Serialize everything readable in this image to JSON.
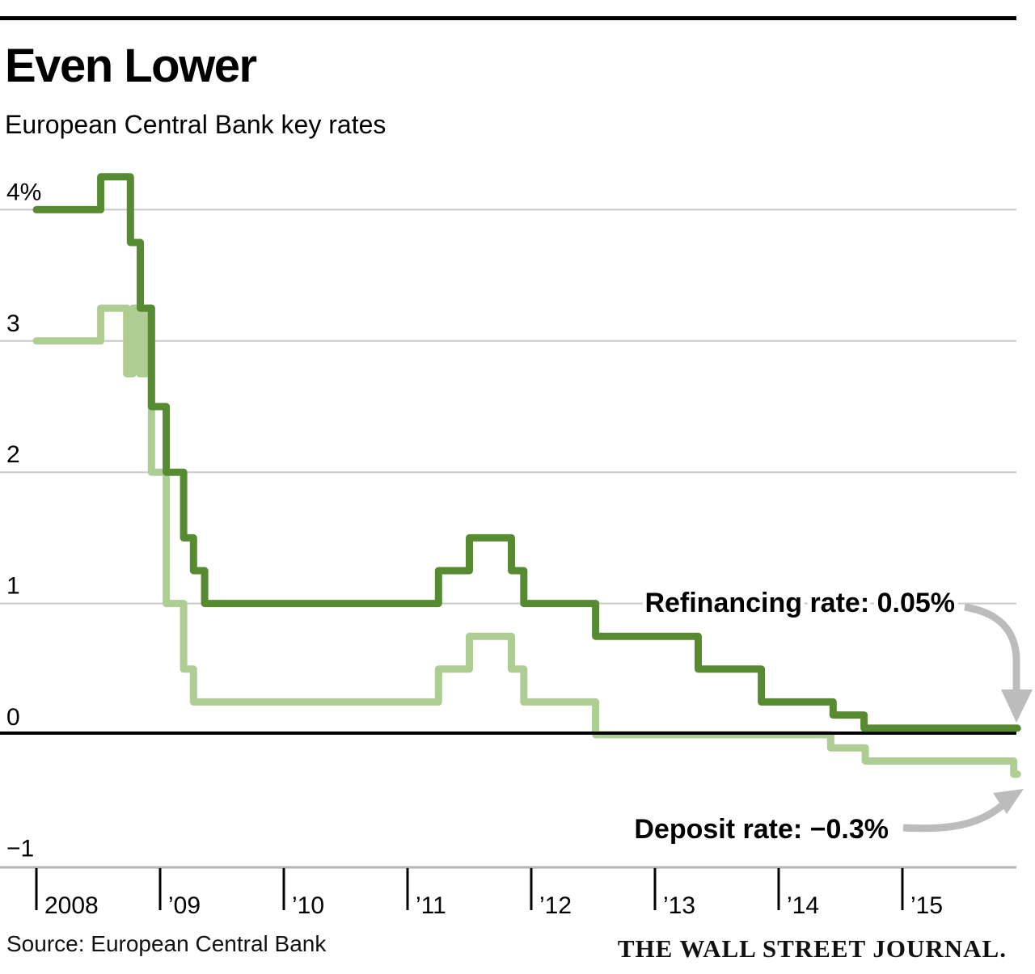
{
  "header": {
    "title": "Even Lower",
    "subtitle": "European Central Bank key rates"
  },
  "footer": {
    "source": "Source: European Central Bank",
    "brand": "THE WALL STREET JOURNAL."
  },
  "chart_data": {
    "type": "line",
    "subtype": "step",
    "title": "Even Lower",
    "subtitle": "European Central Bank key rates",
    "unit": "percent",
    "x_domain": [
      2008,
      2015.95
    ],
    "y_domain": [
      -1,
      4.3
    ],
    "grid": "horizontal",
    "legend_position": "inline-annotations",
    "y_ticks": [
      {
        "label": "4%",
        "value": 4
      },
      {
        "label": "3",
        "value": 3
      },
      {
        "label": "2",
        "value": 2
      },
      {
        "label": "1",
        "value": 1
      },
      {
        "label": "0",
        "value": 0
      },
      {
        "label": "−1",
        "value": -1
      }
    ],
    "x_ticks": [
      {
        "label": "2008",
        "year": 2008
      },
      {
        "label": "’09",
        "year": 2009
      },
      {
        "label": "’10",
        "year": 2010
      },
      {
        "label": "’11",
        "year": 2011
      },
      {
        "label": "’12",
        "year": 2012
      },
      {
        "label": "’13",
        "year": 2013
      },
      {
        "label": "’14",
        "year": 2014
      },
      {
        "label": "’15",
        "year": 2015
      }
    ],
    "series": [
      {
        "name": "Refinancing rate",
        "current_value": "0.05%",
        "color": "#578b32",
        "points": [
          [
            2008.0,
            4.0
          ],
          [
            2008.52,
            4.25
          ],
          [
            2008.76,
            3.75
          ],
          [
            2008.84,
            3.25
          ],
          [
            2008.93,
            2.5
          ],
          [
            2009.05,
            2.0
          ],
          [
            2009.19,
            1.5
          ],
          [
            2009.27,
            1.25
          ],
          [
            2009.36,
            1.0
          ],
          [
            2011.25,
            1.25
          ],
          [
            2011.5,
            1.5
          ],
          [
            2011.84,
            1.25
          ],
          [
            2011.94,
            1.0
          ],
          [
            2012.52,
            0.75
          ],
          [
            2013.35,
            0.5
          ],
          [
            2013.86,
            0.25
          ],
          [
            2014.44,
            0.15
          ],
          [
            2014.69,
            0.05
          ],
          [
            2015.93,
            0.05
          ]
        ]
      },
      {
        "name": "Deposit rate",
        "current_value": "−0.3%",
        "color": "#aecd92",
        "points": [
          [
            2008.0,
            3.0
          ],
          [
            2008.52,
            3.25
          ],
          [
            2008.73,
            2.75
          ],
          [
            2008.78,
            3.25
          ],
          [
            2008.835,
            2.75
          ],
          [
            2008.885,
            3.25
          ],
          [
            2008.93,
            2.0
          ],
          [
            2009.05,
            1.0
          ],
          [
            2009.19,
            0.5
          ],
          [
            2009.27,
            0.25
          ],
          [
            2011.25,
            0.5
          ],
          [
            2011.5,
            0.75
          ],
          [
            2011.84,
            0.5
          ],
          [
            2011.94,
            0.25
          ],
          [
            2012.52,
            0.0
          ],
          [
            2014.42,
            -0.1
          ],
          [
            2014.7,
            -0.2
          ],
          [
            2015.9,
            -0.3
          ],
          [
            2015.93,
            -0.3
          ]
        ]
      }
    ],
    "annotations": [
      {
        "text": "Refinancing rate: 0.05%",
        "target_series": "Refinancing rate"
      },
      {
        "text": "Deposit rate: −0.3%",
        "target_series": "Deposit rate"
      }
    ],
    "colors": {
      "grid": "#c9c9c9",
      "zero_line": "#000000",
      "axis": "#b5b5b5",
      "tick": "#000000",
      "arrow": "#bcbcbc"
    }
  }
}
